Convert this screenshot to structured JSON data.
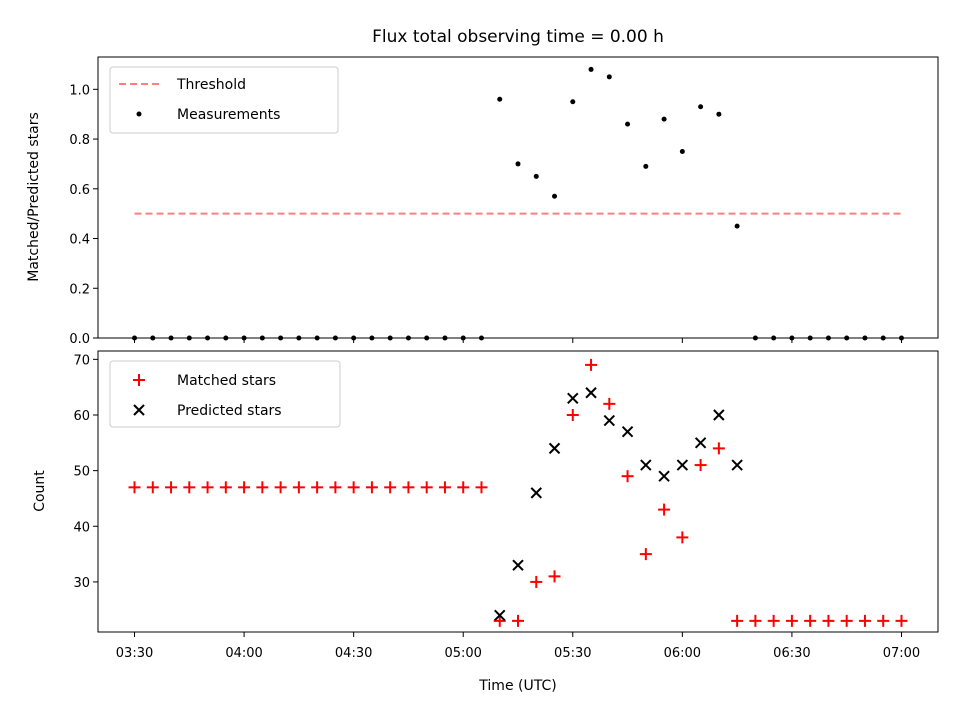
{
  "chart_data": [
    {
      "type": "line",
      "title": "Flux total observing time = 0.00 h",
      "ylabel": "Matched/Predicted stars",
      "xlabel": "",
      "ylim": [
        0,
        1.13
      ],
      "yticks": [
        "0.0",
        "0.2",
        "0.4",
        "0.6",
        "0.8",
        "1.0"
      ],
      "xlim": [
        "03:20",
        "07:10"
      ],
      "grid": false,
      "legend": {
        "placement": "top-left",
        "entries": [
          "Threshold",
          "Measurements"
        ]
      },
      "series": [
        {
          "name": "Threshold",
          "style": "dashed-line",
          "color": "#ff7f7f",
          "x": [
            "03:30",
            "07:00"
          ],
          "y": [
            0.5,
            0.5
          ]
        },
        {
          "name": "Measurements",
          "style": "dot",
          "color": "#000000",
          "x": [
            "03:30",
            "03:35",
            "03:40",
            "03:45",
            "03:50",
            "03:55",
            "04:00",
            "04:05",
            "04:10",
            "04:15",
            "04:20",
            "04:25",
            "04:30",
            "04:35",
            "04:40",
            "04:45",
            "04:50",
            "04:55",
            "05:00",
            "05:05",
            "05:10",
            "05:15",
            "05:20",
            "05:25",
            "05:30",
            "05:35",
            "05:40",
            "05:45",
            "05:50",
            "05:55",
            "06:00",
            "06:05",
            "06:10",
            "06:15",
            "06:20",
            "06:25",
            "06:30",
            "06:35",
            "06:40",
            "06:45",
            "06:50",
            "06:55",
            "07:00"
          ],
          "y": [
            0,
            0,
            0,
            0,
            0,
            0,
            0,
            0,
            0,
            0,
            0,
            0,
            0,
            0,
            0,
            0,
            0,
            0,
            0,
            0,
            0.96,
            0.7,
            0.65,
            0.57,
            0.95,
            1.08,
            1.05,
            0.86,
            0.69,
            0.88,
            0.75,
            0.93,
            0.9,
            0.45,
            0,
            0,
            0,
            0,
            0,
            0,
            0,
            0,
            0
          ]
        }
      ]
    },
    {
      "type": "scatter",
      "title": "",
      "ylabel": "Count",
      "xlabel": "Time (UTC)",
      "ylim": [
        21,
        71.5
      ],
      "yticks": [
        "30",
        "40",
        "50",
        "60",
        "70"
      ],
      "xlim": [
        "03:20",
        "07:10"
      ],
      "xticks": [
        "03:30",
        "04:00",
        "04:30",
        "05:00",
        "05:30",
        "06:00",
        "06:30",
        "07:00"
      ],
      "grid": false,
      "legend": {
        "placement": "top-left",
        "entries": [
          "Matched stars",
          "Predicted stars"
        ]
      },
      "series": [
        {
          "name": "Matched stars",
          "marker": "plus",
          "color": "#ff0000",
          "x": [
            "03:30",
            "03:35",
            "03:40",
            "03:45",
            "03:50",
            "03:55",
            "04:00",
            "04:05",
            "04:10",
            "04:15",
            "04:20",
            "04:25",
            "04:30",
            "04:35",
            "04:40",
            "04:45",
            "04:50",
            "04:55",
            "05:00",
            "05:05",
            "05:10",
            "05:15",
            "05:20",
            "05:25",
            "05:30",
            "05:35",
            "05:40",
            "05:45",
            "05:50",
            "05:55",
            "06:00",
            "06:05",
            "06:10",
            "06:15",
            "06:20",
            "06:25",
            "06:30",
            "06:35",
            "06:40",
            "06:45",
            "06:50",
            "06:55",
            "07:00"
          ],
          "y": [
            47,
            47,
            47,
            47,
            47,
            47,
            47,
            47,
            47,
            47,
            47,
            47,
            47,
            47,
            47,
            47,
            47,
            47,
            47,
            47,
            23,
            23,
            30,
            31,
            60,
            69,
            62,
            49,
            35,
            43,
            38,
            51,
            54,
            23,
            23,
            23,
            23,
            23,
            23,
            23,
            23,
            23,
            23
          ]
        },
        {
          "name": "Predicted stars",
          "marker": "x",
          "color": "#000000",
          "x": [
            "05:10",
            "05:15",
            "05:20",
            "05:25",
            "05:30",
            "05:35",
            "05:40",
            "05:45",
            "05:50",
            "05:55",
            "06:00",
            "06:05",
            "06:10",
            "06:15"
          ],
          "y": [
            24,
            33,
            46,
            54,
            63,
            64,
            59,
            57,
            51,
            49,
            51,
            55,
            60,
            51
          ]
        }
      ]
    }
  ]
}
